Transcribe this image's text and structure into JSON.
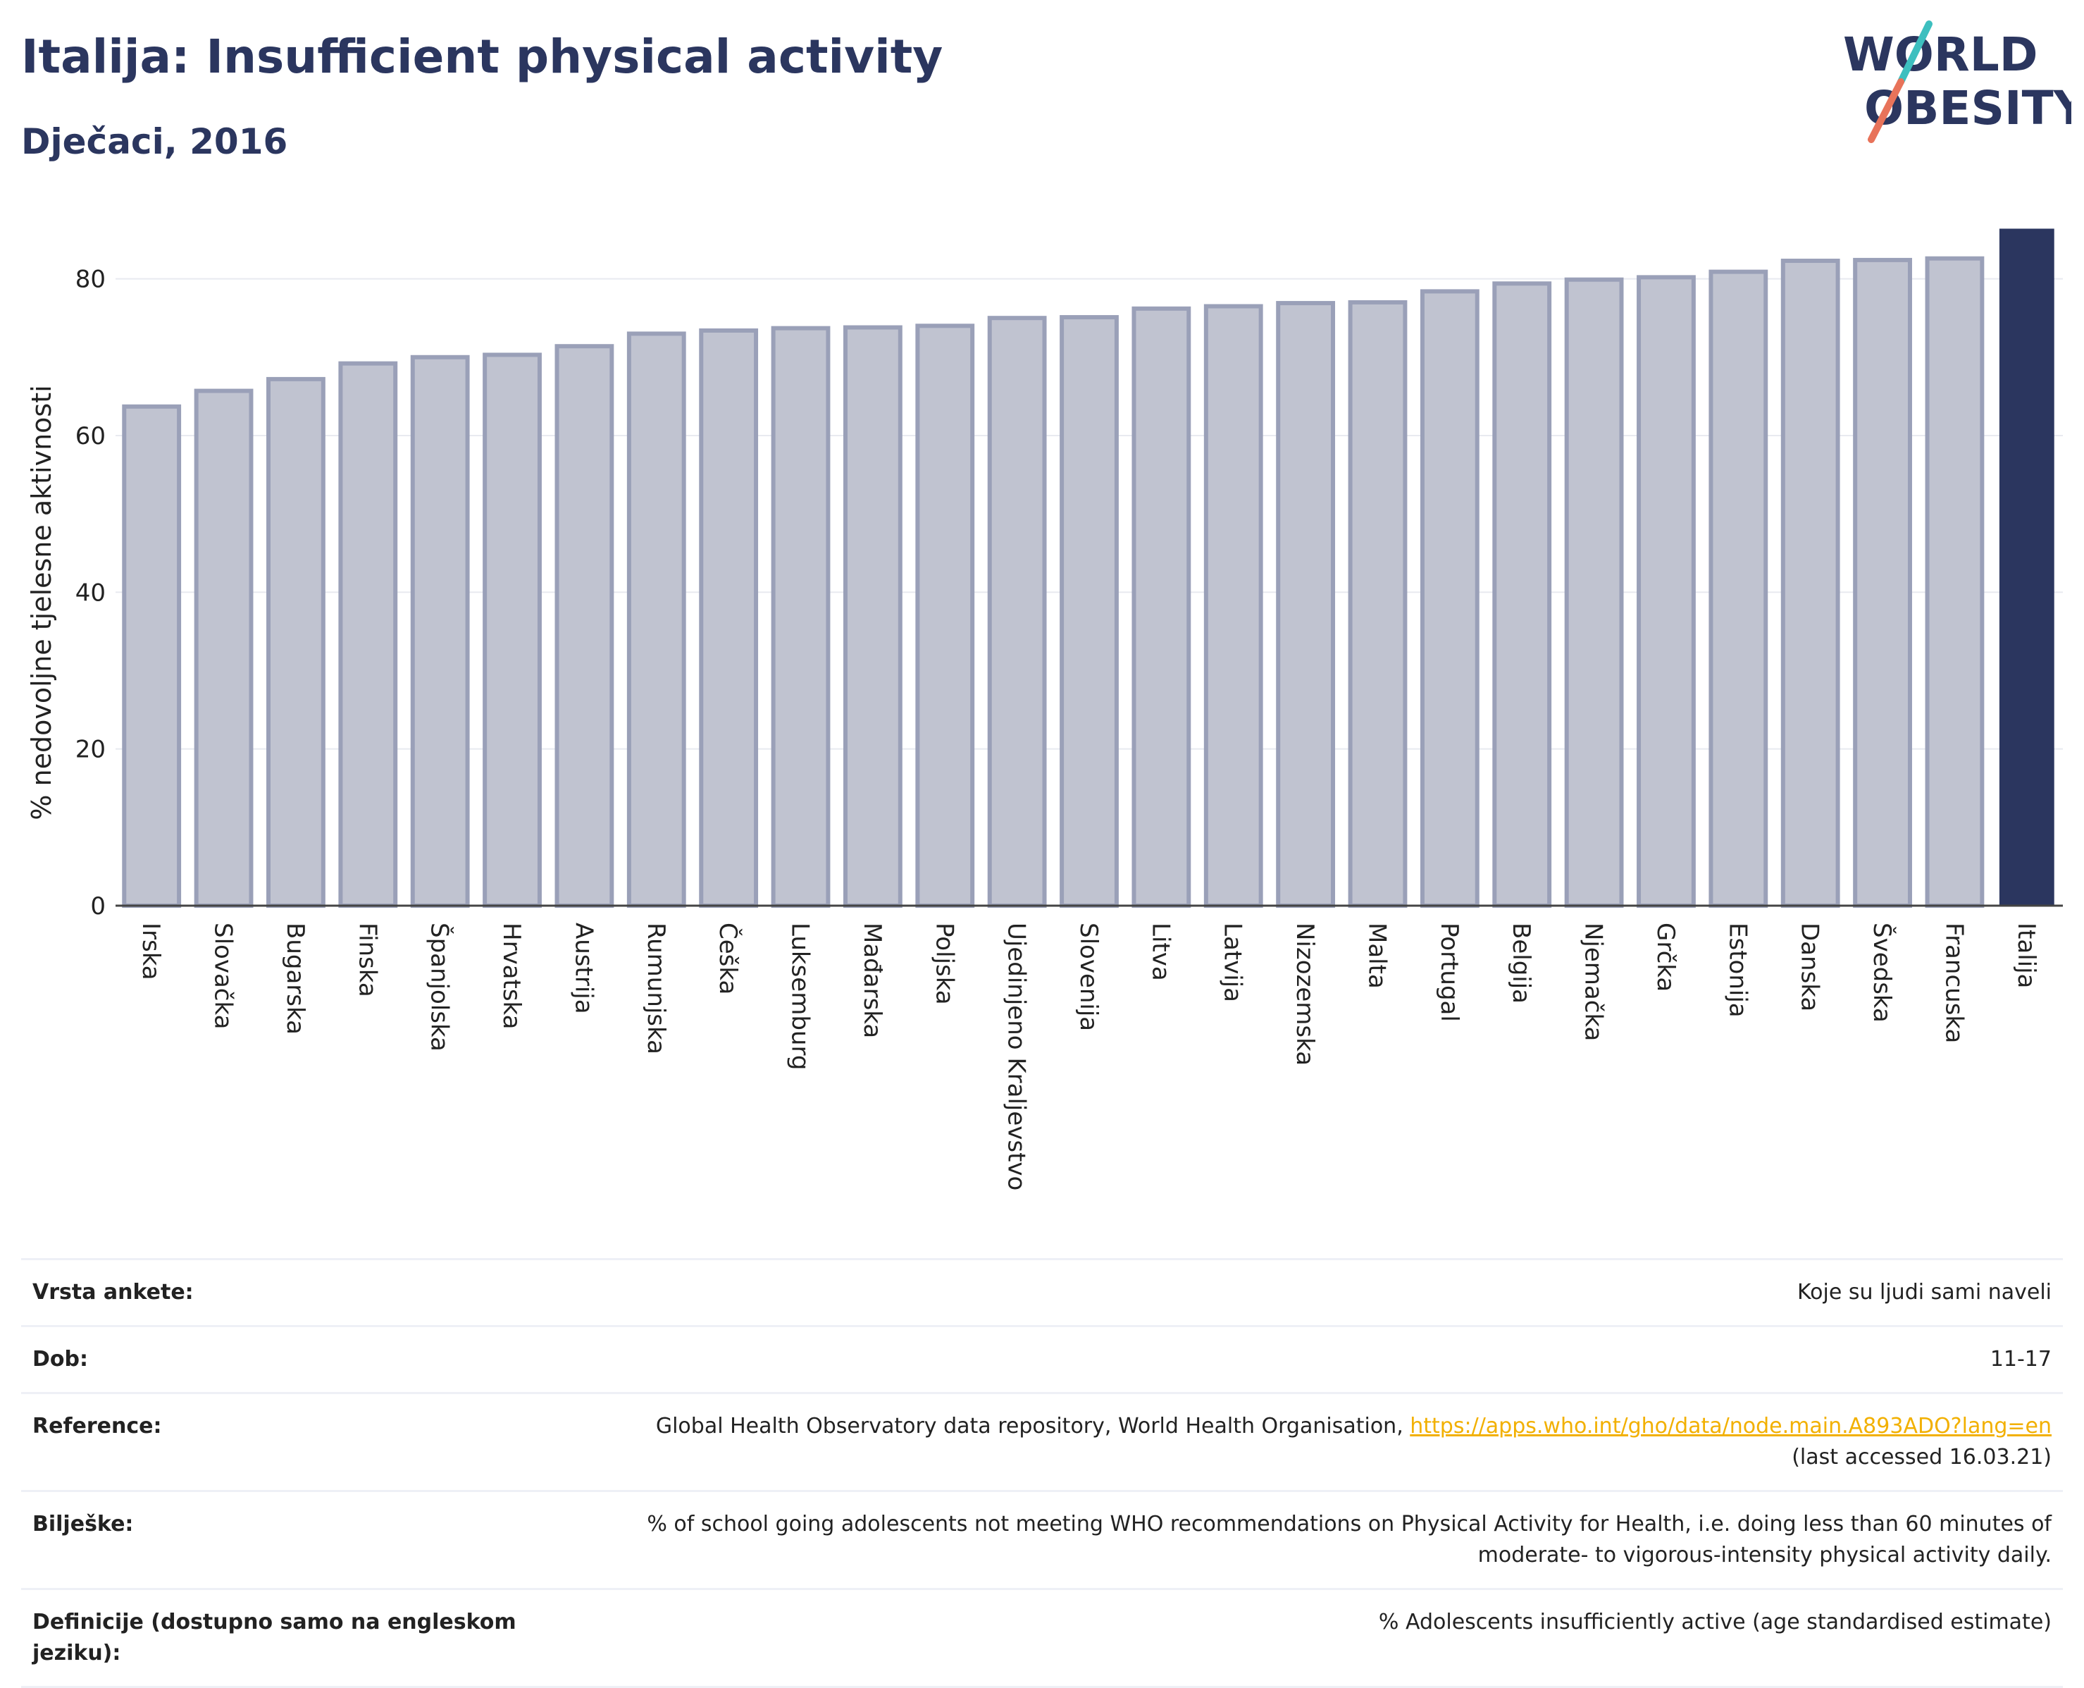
{
  "header": {
    "title": "Italija: Insufficient physical activity",
    "subtitle": "Dječaci, 2016"
  },
  "logo": {
    "line1": "WORLD",
    "line2": "OBESITY",
    "icon": "world-obesity-logo"
  },
  "colors": {
    "bar_default": "#c0c3d0",
    "bar_stroke": "#9aa0b8",
    "bar_highlight": "#2b365f",
    "grid": "#e8eaf0",
    "text_dark": "#2b365f",
    "link": "#f2b000"
  },
  "chart_data": {
    "type": "bar",
    "title": "Italija: Insufficient physical activity",
    "subtitle": "Dječaci, 2016",
    "ylabel": "% nedovoljne tjelesne aktivnosti",
    "xlabel": "",
    "ylim": [
      0,
      86.8
    ],
    "yticks": [
      0,
      20,
      40,
      60,
      80
    ],
    "grid": true,
    "highlight": "Italija",
    "categories": [
      "Irska",
      "Slovačka",
      "Bugarska",
      "Finska",
      "Španjolska",
      "Hrvatska",
      "Austrija",
      "Rumunjska",
      "Češka",
      "Luksemburg",
      "Mađarska",
      "Poljska",
      "Ujedinjeno Kraljevstvo",
      "Slovenija",
      "Litva",
      "Latvija",
      "Nizozemska",
      "Malta",
      "Portugal",
      "Belgija",
      "Njemačka",
      "Grčka",
      "Estonija",
      "Danska",
      "Švedska",
      "Francuska",
      "Italija"
    ],
    "values": [
      63.7,
      65.7,
      67.2,
      69.2,
      70.0,
      70.3,
      71.4,
      73.0,
      73.4,
      73.7,
      73.8,
      74.0,
      75.0,
      75.1,
      76.2,
      76.5,
      76.9,
      77.0,
      78.4,
      79.4,
      79.9,
      80.2,
      80.9,
      82.3,
      82.4,
      82.6,
      86.4
    ]
  },
  "info": {
    "rows": [
      {
        "label": "Vrsta ankete:",
        "value": "Koje su ljudi sami naveli"
      },
      {
        "label": "Dob:",
        "value": "11-17"
      },
      {
        "label": "Reference:",
        "value_prefix": "Global Health Observatory data repository, World Health Organisation, ",
        "link": "https://apps.who.int/gho/data/node.main.A893ADO?lang=en",
        "value_suffix": "(last accessed 16.03.21)"
      },
      {
        "label": "Bilješke:",
        "value": "% of school going adolescents not meeting WHO recommendations on Physical Activity for Health, i.e. doing less than 60 minutes of moderate- to vigorous-intensity physical activity daily."
      },
      {
        "label": "Definicije (dostupno samo na engleskom jeziku):",
        "value": "% Adolescents insufficiently active (age standardised estimate)"
      }
    ]
  }
}
